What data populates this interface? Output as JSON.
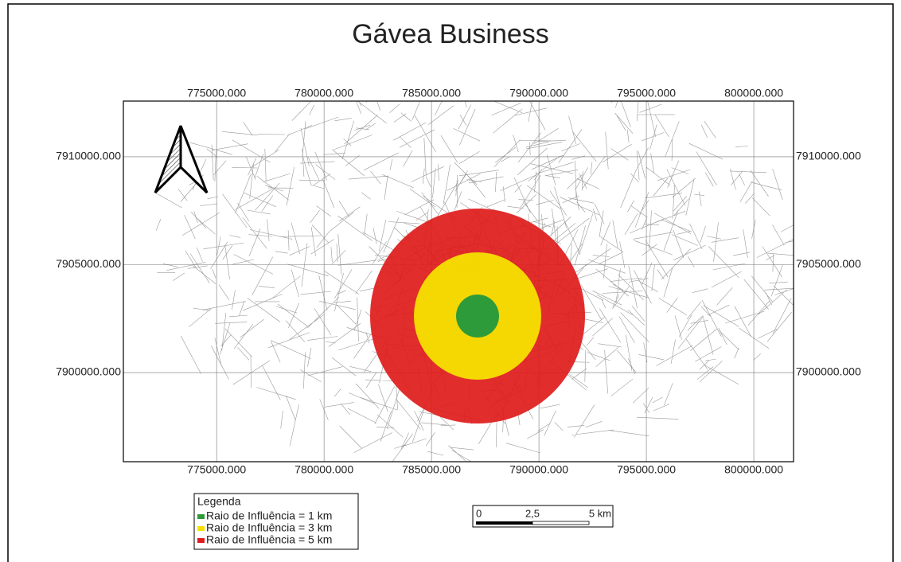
{
  "title": "Gávea Business",
  "map": {
    "xlim": [
      770660,
      801850
    ],
    "ylim": [
      7895870,
      7912580
    ],
    "xticks": [
      {
        "value": 775000,
        "label": "775000.000"
      },
      {
        "value": 780000,
        "label": "780000.000"
      },
      {
        "value": 785000,
        "label": "785000.000"
      },
      {
        "value": 790000,
        "label": "790000.000"
      },
      {
        "value": 795000,
        "label": "795000.000"
      },
      {
        "value": 800000,
        "label": "800000.000"
      }
    ],
    "yticks": [
      {
        "value": 7900000,
        "label": "7900000.000"
      },
      {
        "value": 7905000,
        "label": "7905000.000"
      },
      {
        "value": 7910000,
        "label": "7910000.000"
      }
    ]
  },
  "legend": {
    "title": "Legenda",
    "items": [
      {
        "label": "Raio de Influência = 1 km",
        "color": "#2e9b3a"
      },
      {
        "label": "Raio de Influência = 3 km",
        "color": "#f5e000"
      },
      {
        "label": "Raio de Influência = 5 km",
        "color": "#e01b1b"
      }
    ]
  },
  "scale_bar": {
    "labels": [
      "0",
      "2,5",
      "5 km"
    ]
  }
}
